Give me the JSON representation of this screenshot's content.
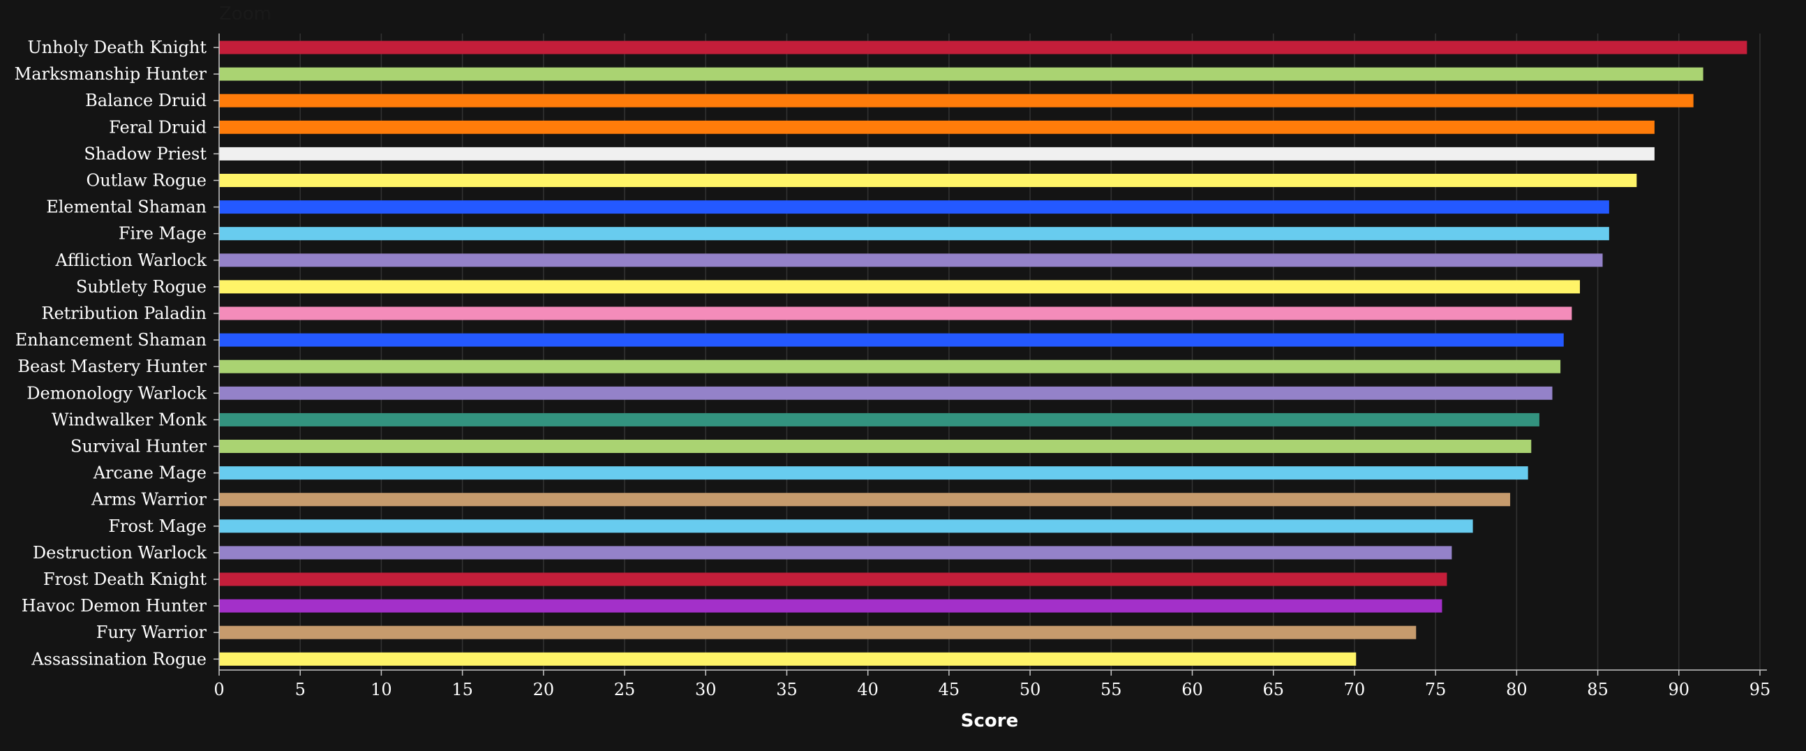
{
  "zoom_label": "Zoom",
  "chart_data": {
    "type": "bar",
    "orientation": "horizontal",
    "xlabel": "Score",
    "xlim": [
      0,
      95
    ],
    "xticks": [
      "0",
      "5",
      "10",
      "15",
      "20",
      "25",
      "30",
      "35",
      "40",
      "45",
      "50",
      "55",
      "60",
      "65",
      "70",
      "75",
      "80",
      "85",
      "90",
      "95"
    ],
    "grid": true,
    "categories": [
      "Unholy Death Knight",
      "Marksmanship Hunter",
      "Balance Druid",
      "Feral Druid",
      "Shadow Priest",
      "Outlaw Rogue",
      "Elemental Shaman",
      "Fire Mage",
      "Affliction Warlock",
      "Subtlety Rogue",
      "Retribution Paladin",
      "Enhancement Shaman",
      "Beast Mastery Hunter",
      "Demonology Warlock",
      "Windwalker Monk",
      "Survival Hunter",
      "Arcane Mage",
      "Arms Warrior",
      "Frost Mage",
      "Destruction Warlock",
      "Frost Death Knight",
      "Havoc Demon Hunter",
      "Fury Warrior",
      "Assassination Rogue"
    ],
    "values": [
      94.2,
      91.5,
      90.9,
      88.5,
      88.5,
      87.4,
      85.7,
      85.7,
      85.3,
      83.9,
      83.4,
      82.9,
      82.7,
      82.2,
      81.4,
      80.9,
      80.7,
      79.6,
      77.3,
      76.0,
      75.7,
      75.4,
      73.8,
      70.1
    ],
    "colors": [
      "#c41e3a",
      "#aad372",
      "#ff7c0a",
      "#ff7c0a",
      "#f0f0f0",
      "#fff468",
      "#2459ff",
      "#68ccef",
      "#9482c9",
      "#fff468",
      "#f48cba",
      "#2459ff",
      "#aad372",
      "#9482c9",
      "#33937f",
      "#aad372",
      "#68ccef",
      "#c69b6d",
      "#68ccef",
      "#9482c9",
      "#c41e3a",
      "#a330c9",
      "#c69b6d",
      "#fff468"
    ],
    "background_color": "#141414"
  }
}
